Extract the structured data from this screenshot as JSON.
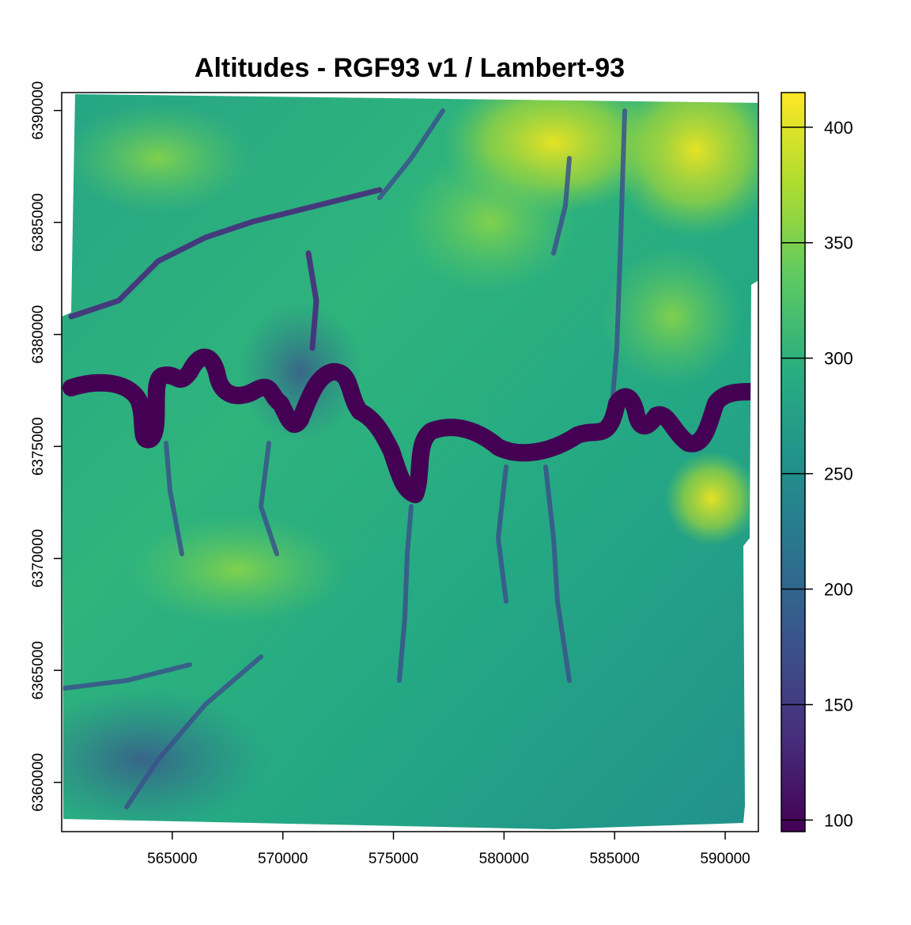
{
  "chart_data": {
    "type": "heatmap",
    "title": "Altitudes - RGF93 v1 / Lambert-93",
    "xlabel": "",
    "ylabel": "",
    "x_ticks": [
      "565000",
      "570000",
      "575000",
      "580000",
      "585000",
      "590000"
    ],
    "y_ticks": [
      "6360000",
      "6365000",
      "6370000",
      "6375000",
      "6380000",
      "6385000",
      "6390000"
    ],
    "xlim": [
      560000,
      591500
    ],
    "ylim": [
      6357800,
      6390800
    ],
    "legend": {
      "position": "right",
      "range": [
        95,
        415
      ],
      "ticks": [
        "100",
        "150",
        "200",
        "250",
        "300",
        "350",
        "400"
      ],
      "colormap": "viridis"
    },
    "colors": {
      "low": "#440154",
      "mid": "#21918c",
      "high": "#fde725"
    }
  }
}
